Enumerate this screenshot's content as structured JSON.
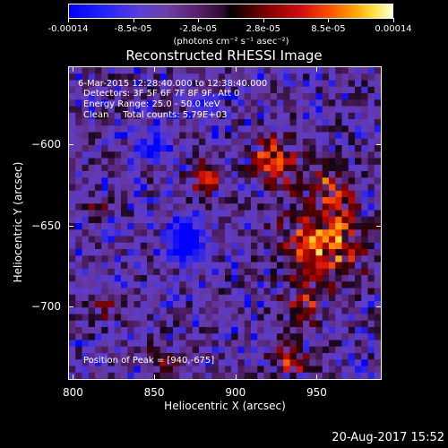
{
  "chart_data": {
    "type": "heatmap",
    "title": "Reconstructed RHESSI Image",
    "xlabel": "Heliocentric X (arcsec)",
    "ylabel": "Heliocentric Y (arcsec)",
    "xlim": [
      797,
      990
    ],
    "ylim": [
      -745,
      -552
    ],
    "x_ticks": [
      "800",
      "850",
      "900",
      "950"
    ],
    "y_ticks": [
      "-600",
      "-650",
      "-700"
    ],
    "colorbar": {
      "min": -0.00014,
      "max": 0.00014,
      "tick_labels": [
        "-0.00014",
        "-8.5e-05",
        "-2.8e-05",
        "2.8e-05",
        "8.5e-05",
        "0.00014"
      ],
      "unit_label": "(photons cm⁻² s⁻¹ asec⁻²)"
    },
    "info_lines": [
      "6-Mar-2015 12:28:40.000 to 12:38:40.000",
      "Detectors: 3F 5F 6F 7F 8F 9F, Att 0",
      "Energy Range: 25.0 - 50.0 keV",
      "Clean     Total counts: 5.79E+03"
    ],
    "peak_label": "Position of Peak = [940,-675]",
    "peak": [
      940,
      -675
    ],
    "features": [
      {
        "x": 955,
        "y": -660,
        "r": 24,
        "v": 1.0
      },
      {
        "x": 925,
        "y": -610,
        "r": 14,
        "v": 0.85
      },
      {
        "x": 960,
        "y": -625,
        "r": 12,
        "v": 0.6
      },
      {
        "x": 940,
        "y": -700,
        "r": 12,
        "v": 0.55
      },
      {
        "x": 880,
        "y": -620,
        "r": 10,
        "v": 0.65
      },
      {
        "x": 935,
        "y": -735,
        "r": 12,
        "v": 0.6
      },
      {
        "x": 855,
        "y": -735,
        "r": 10,
        "v": 0.55
      },
      {
        "x": 820,
        "y": -700,
        "r": 8,
        "v": 0.5
      },
      {
        "x": 815,
        "y": -640,
        "r": 6,
        "v": 0.4
      },
      {
        "x": 870,
        "y": -660,
        "r": 12,
        "v": -0.95
      },
      {
        "x": 850,
        "y": -600,
        "r": 10,
        "v": -0.6
      },
      {
        "x": 880,
        "y": -575,
        "r": 8,
        "v": -0.5
      }
    ]
  },
  "footer_date": "20-Aug-2017 15:52"
}
